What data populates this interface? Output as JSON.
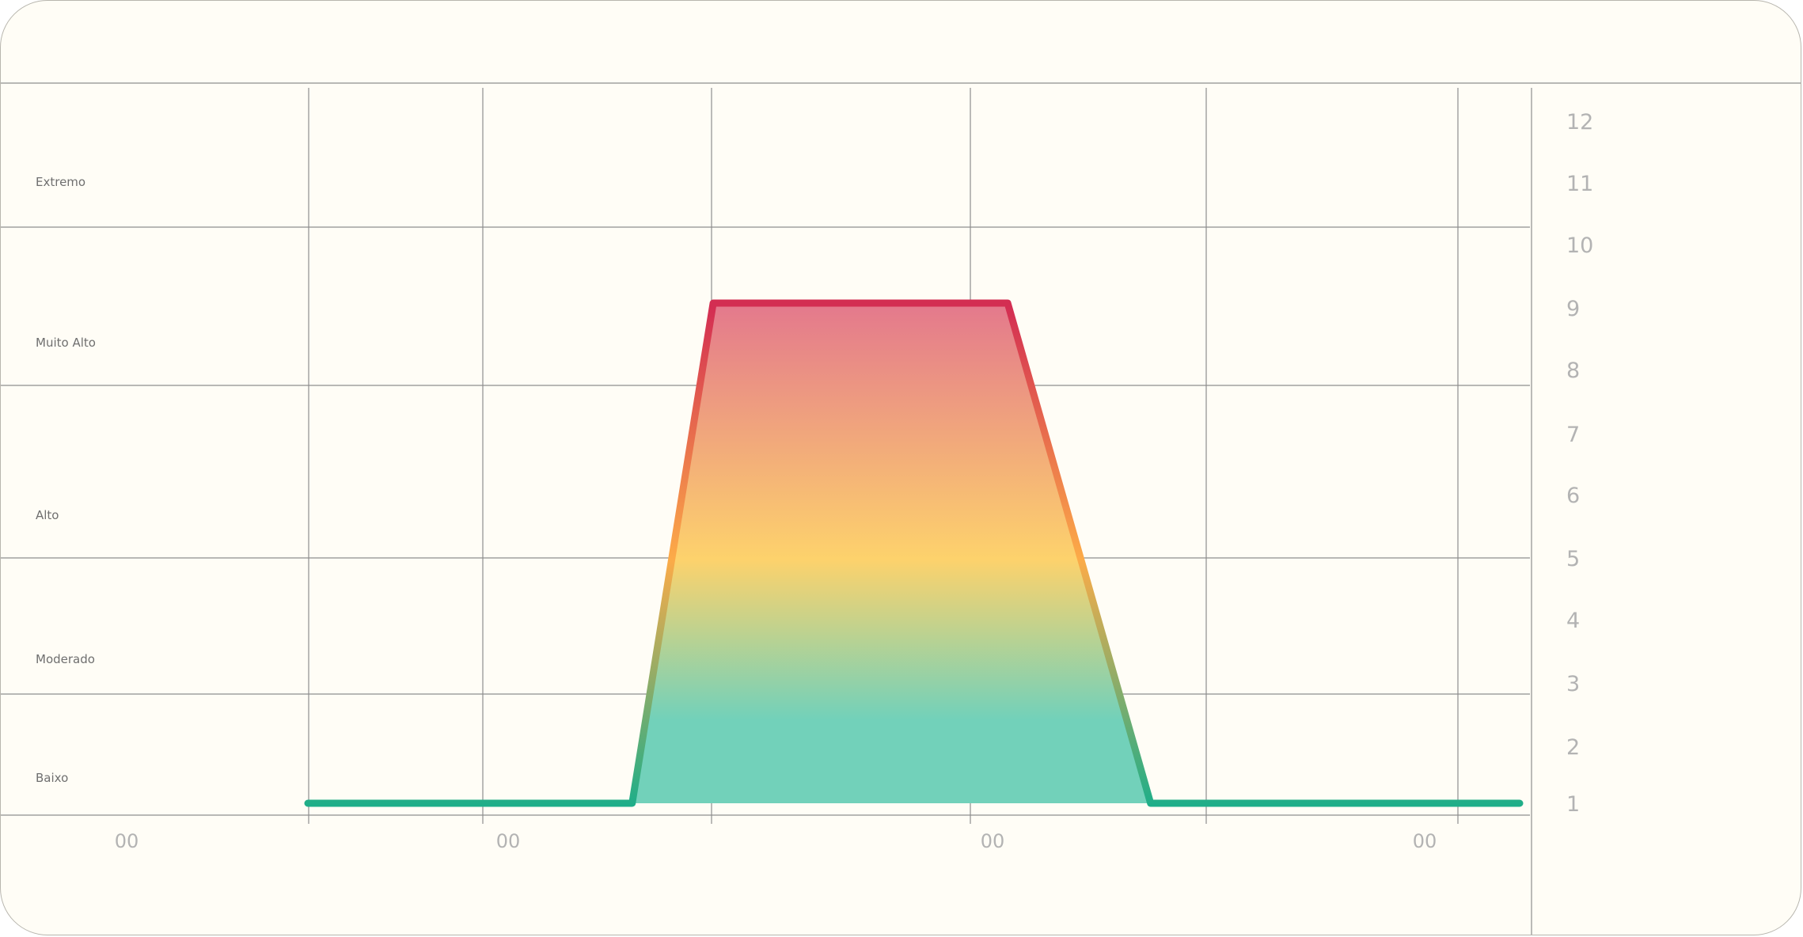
{
  "chart_data": {
    "type": "area",
    "title": "",
    "xlabel": "",
    "ylabel": "",
    "x_tick_labels": [
      "00",
      "00",
      "00",
      "00"
    ],
    "y_ticks": [
      1,
      2,
      3,
      4,
      5,
      6,
      7,
      8,
      9,
      10,
      11,
      12
    ],
    "ylim": [
      1,
      12
    ],
    "xlim": [
      0,
      7.2
    ],
    "grid": true,
    "y_axis_position": "right",
    "bands": [
      {
        "label": "Baixo",
        "from": 0,
        "to": 2.1
      },
      {
        "label": "Moderado",
        "from": 2.1,
        "to": 4.3
      },
      {
        "label": "Alto",
        "from": 4.3,
        "to": 7.05
      },
      {
        "label": "Muito Alto",
        "from": 7.05,
        "to": 9.6
      },
      {
        "label": "Extremo",
        "from": 9.6,
        "to": 12
      }
    ],
    "series": [
      {
        "points": [
          [
            0,
            1
          ],
          [
            1.52,
            1
          ],
          [
            1.9,
            9
          ],
          [
            3.28,
            9
          ],
          [
            3.95,
            1
          ],
          [
            5.68,
            1
          ]
        ]
      }
    ],
    "colors": {
      "low": "#1aae8a",
      "mid": "#fcab48",
      "high": "#d32e52",
      "fill_low": "#72d1ba",
      "fill_mid": "#fdd26c",
      "fill_high": "#e47a8c"
    }
  }
}
